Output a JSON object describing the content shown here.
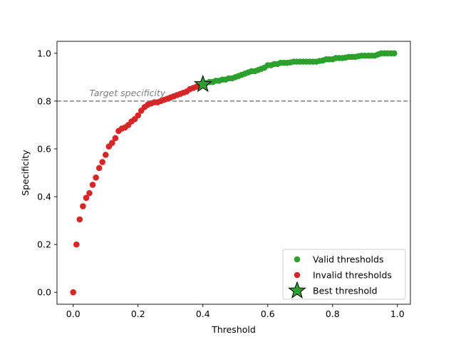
{
  "chart_data": {
    "type": "scatter",
    "xlabel": "Threshold",
    "ylabel": "Specificity",
    "xlim": [
      -0.05,
      1.04
    ],
    "ylim": [
      -0.05,
      1.05
    ],
    "xticks": [
      0.0,
      0.2,
      0.4,
      0.6,
      0.8,
      1.0
    ],
    "yticks": [
      0.0,
      0.2,
      0.4,
      0.6,
      0.8,
      1.0
    ],
    "xtick_labels": [
      "0.0",
      "0.2",
      "0.4",
      "0.6",
      "0.8",
      "1.0"
    ],
    "ytick_labels": [
      "0.0",
      "0.2",
      "0.4",
      "0.6",
      "0.8",
      "1.0"
    ],
    "grid": false,
    "legend_position": "lower-right",
    "reference_line": {
      "y": 0.8,
      "label": "Target specificity",
      "color": "#808080",
      "style": "dashed"
    },
    "series": [
      {
        "name": "Valid thresholds",
        "color": "#2ca02c",
        "marker": "circle",
        "x": [
          0.4,
          0.41,
          0.42,
          0.43,
          0.44,
          0.45,
          0.46,
          0.47,
          0.48,
          0.49,
          0.5,
          0.51,
          0.52,
          0.53,
          0.54,
          0.55,
          0.56,
          0.57,
          0.58,
          0.59,
          0.6,
          0.61,
          0.62,
          0.63,
          0.64,
          0.65,
          0.66,
          0.67,
          0.68,
          0.69,
          0.7,
          0.71,
          0.72,
          0.73,
          0.74,
          0.75,
          0.76,
          0.77,
          0.78,
          0.79,
          0.8,
          0.81,
          0.82,
          0.83,
          0.84,
          0.85,
          0.86,
          0.87,
          0.88,
          0.89,
          0.9,
          0.91,
          0.92,
          0.93,
          0.94,
          0.95,
          0.96,
          0.97,
          0.98,
          0.99
        ],
        "y": [
          0.87,
          0.875,
          0.88,
          0.88,
          0.885,
          0.885,
          0.89,
          0.89,
          0.895,
          0.895,
          0.9,
          0.905,
          0.91,
          0.915,
          0.92,
          0.925,
          0.925,
          0.93,
          0.935,
          0.94,
          0.95,
          0.95,
          0.955,
          0.955,
          0.96,
          0.96,
          0.96,
          0.962,
          0.965,
          0.965,
          0.965,
          0.965,
          0.965,
          0.965,
          0.965,
          0.965,
          0.968,
          0.97,
          0.975,
          0.975,
          0.975,
          0.98,
          0.98,
          0.98,
          0.982,
          0.985,
          0.985,
          0.985,
          0.988,
          0.99,
          0.99,
          0.99,
          0.99,
          0.99,
          0.995,
          1.0,
          1.0,
          1.0,
          1.0,
          1.0
        ]
      },
      {
        "name": "Invalid thresholds",
        "color": "#d62728",
        "marker": "circle",
        "x": [
          0.0,
          0.01,
          0.02,
          0.03,
          0.04,
          0.05,
          0.06,
          0.07,
          0.08,
          0.09,
          0.1,
          0.11,
          0.12,
          0.13,
          0.14,
          0.15,
          0.16,
          0.17,
          0.18,
          0.19,
          0.2,
          0.21,
          0.22,
          0.23,
          0.24,
          0.25,
          0.26,
          0.27,
          0.28,
          0.29,
          0.3,
          0.31,
          0.32,
          0.33,
          0.34,
          0.35,
          0.36,
          0.37,
          0.38,
          0.39
        ],
        "y": [
          0.0,
          0.2,
          0.305,
          0.36,
          0.395,
          0.415,
          0.45,
          0.48,
          0.52,
          0.545,
          0.575,
          0.61,
          0.625,
          0.645,
          0.675,
          0.685,
          0.69,
          0.7,
          0.715,
          0.725,
          0.74,
          0.76,
          0.775,
          0.785,
          0.79,
          0.795,
          0.795,
          0.8,
          0.805,
          0.81,
          0.815,
          0.82,
          0.825,
          0.83,
          0.835,
          0.84,
          0.85,
          0.855,
          0.86,
          0.865
        ]
      }
    ],
    "best_point": {
      "name": "Best threshold",
      "x": 0.4,
      "y": 0.87,
      "color": "#2ca02c",
      "marker": "star"
    }
  }
}
